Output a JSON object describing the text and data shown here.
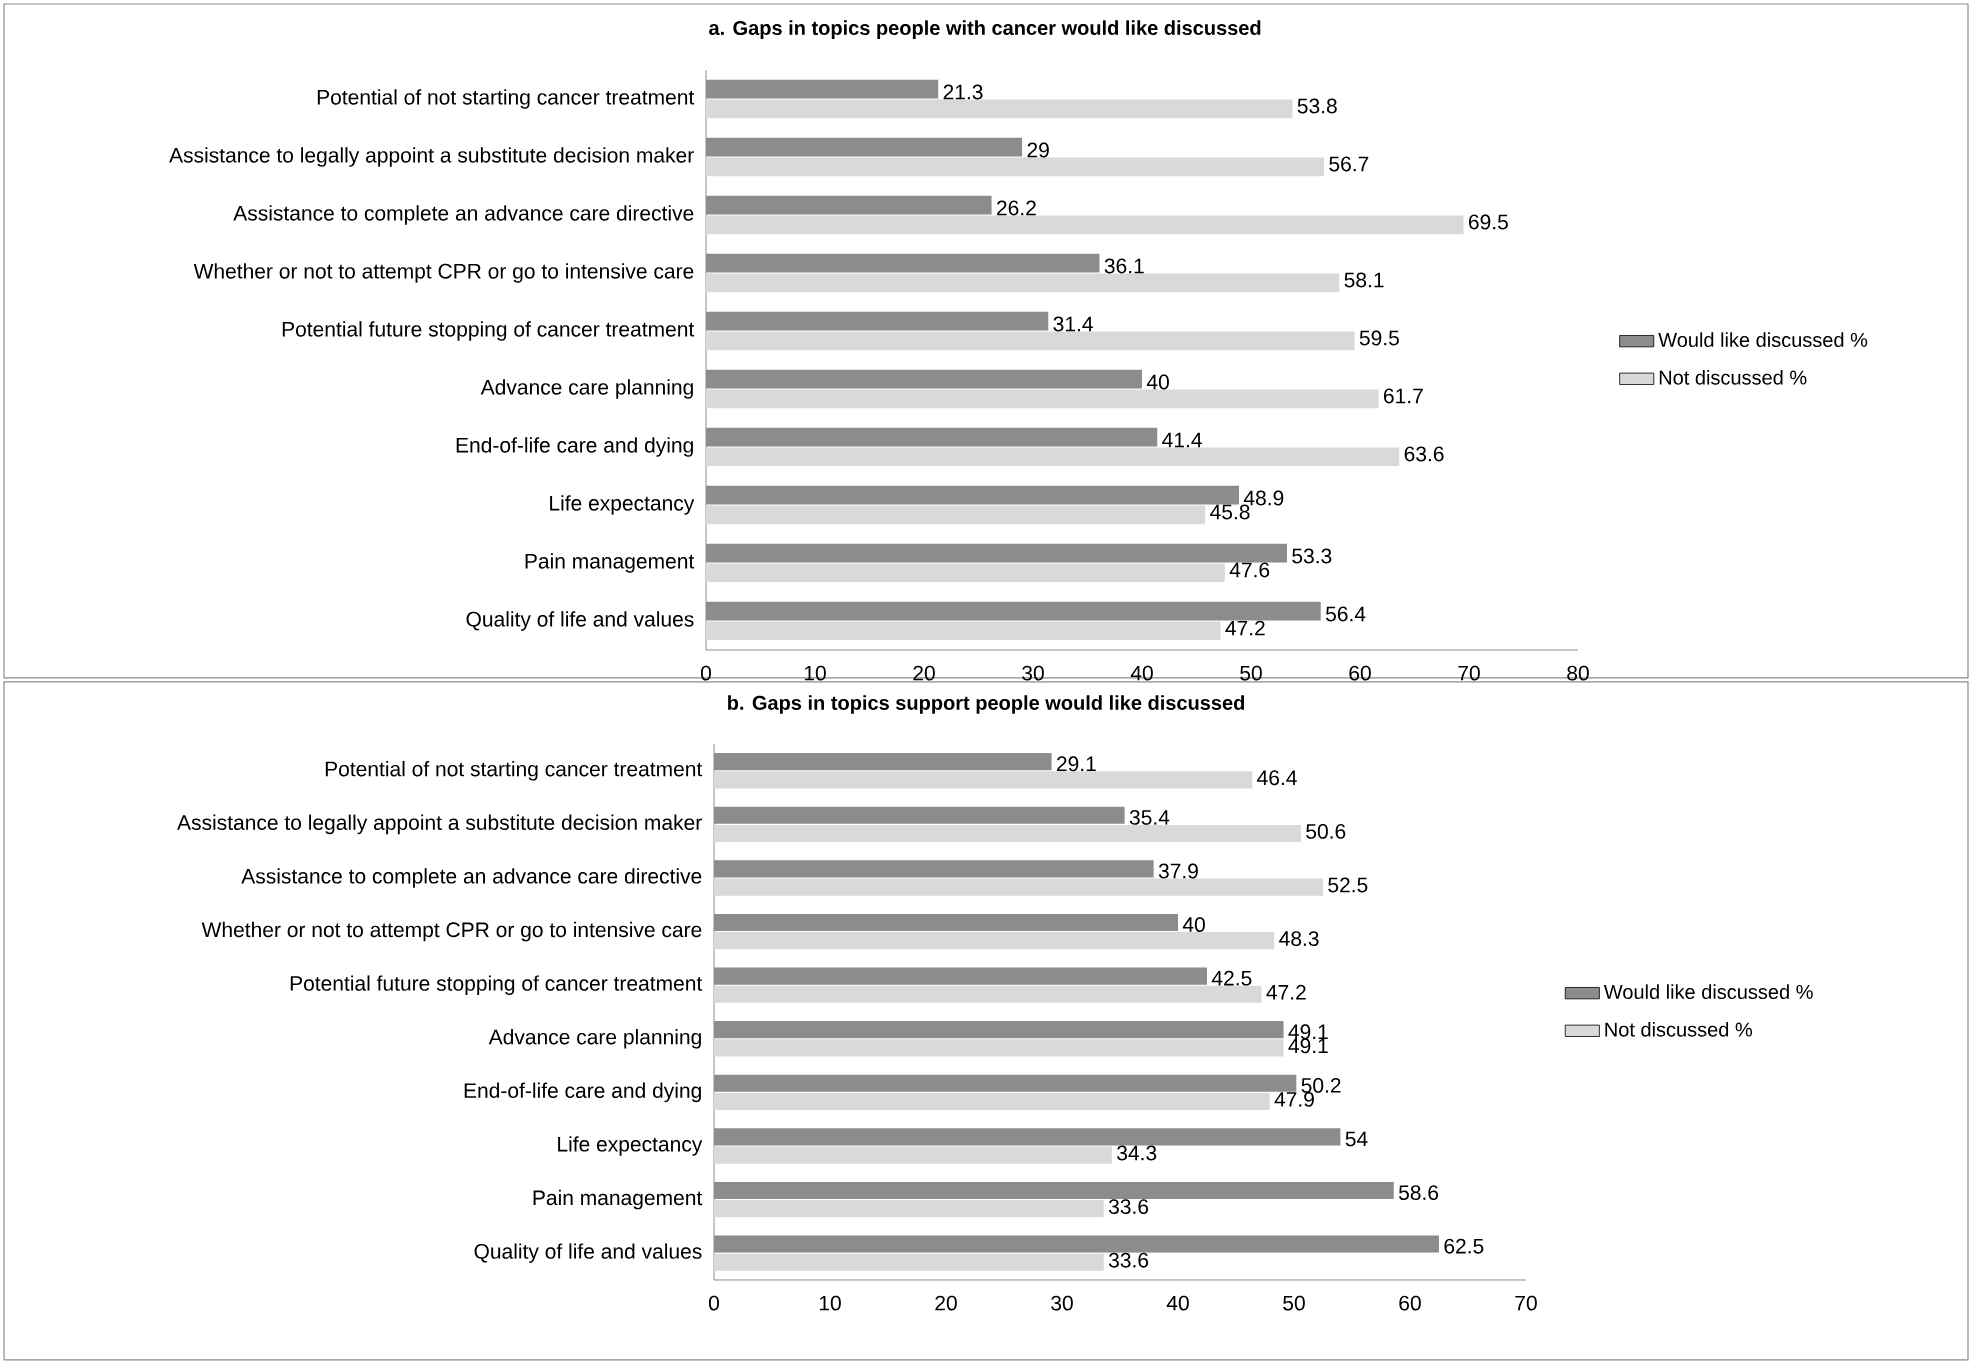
{
  "chart_data": [
    {
      "type": "bar",
      "orientation": "horizontal",
      "title": "a. Gaps in topics people with cancer would like discussed",
      "categories": [
        "Potential of not starting cancer treatment",
        "Assistance to legally appoint a substitute decision maker",
        "Assistance to complete an advance care directive",
        "Whether or not to attempt CPR or go to intensive care",
        "Potential future stopping of cancer treatment",
        "Advance care planning",
        "End-of-life care and dying",
        "Life expectancy",
        "Pain management",
        "Quality of life and values"
      ],
      "series": [
        {
          "name": "Would like discussed %",
          "color": "#8c8c8c",
          "values": [
            21.3,
            29,
            26.2,
            36.1,
            31.4,
            40,
            41.4,
            48.9,
            53.3,
            56.4
          ]
        },
        {
          "name": "Not discussed %",
          "color": "#d9d9d9",
          "values": [
            53.8,
            56.7,
            69.5,
            58.1,
            59.5,
            61.7,
            63.6,
            45.8,
            47.6,
            47.2
          ]
        }
      ],
      "xlim": [
        0,
        80
      ],
      "xticks": [
        0,
        10,
        20,
        30,
        40,
        50,
        60,
        70,
        80
      ],
      "data_labels": true,
      "legend": "right"
    },
    {
      "type": "bar",
      "orientation": "horizontal",
      "title": "b. Gaps in topics support people would like discussed",
      "categories": [
        "Potential of not starting cancer treatment",
        "Assistance to legally appoint a substitute decision maker",
        "Assistance to complete an advance care directive",
        "Whether or not to attempt CPR or go to intensive care",
        "Potential future stopping of cancer treatment",
        "Advance care planning",
        "End-of-life care and dying",
        "Life expectancy",
        "Pain management",
        "Quality of life and values"
      ],
      "series": [
        {
          "name": "Would like discussed %",
          "color": "#8c8c8c",
          "values": [
            29.1,
            35.4,
            37.9,
            40,
            42.5,
            49.1,
            50.2,
            54,
            58.6,
            62.5
          ]
        },
        {
          "name": "Not discussed %",
          "color": "#d9d9d9",
          "values": [
            46.4,
            50.6,
            52.5,
            48.3,
            47.2,
            49.1,
            47.9,
            34.3,
            33.6,
            33.6
          ]
        }
      ],
      "xlim": [
        0,
        70
      ],
      "xticks": [
        0,
        10,
        20,
        30,
        40,
        50,
        60,
        70
      ],
      "data_labels": true,
      "legend": "right"
    }
  ]
}
